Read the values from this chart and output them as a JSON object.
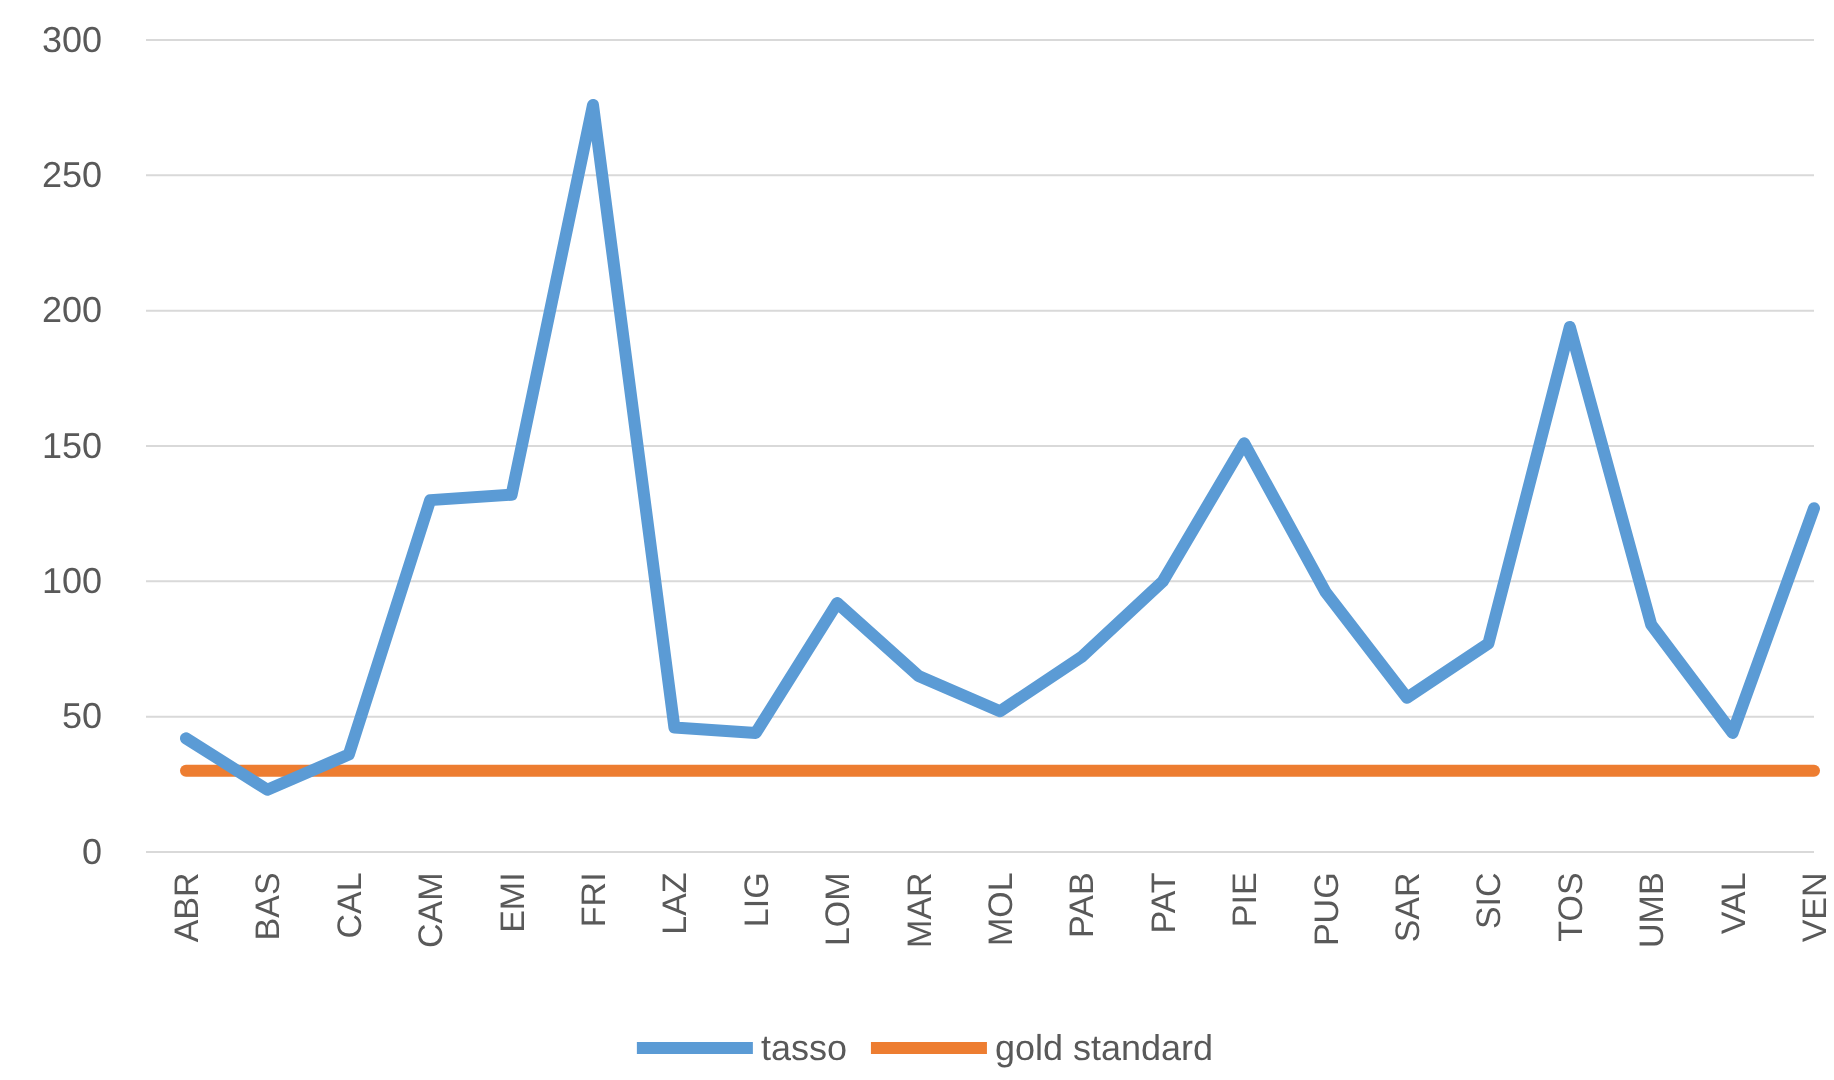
{
  "chart_data": {
    "type": "line",
    "categories": [
      "ABR",
      "BAS",
      "CAL",
      "CAM",
      "EMI",
      "FRI",
      "LAZ",
      "LIG",
      "LOM",
      "MAR",
      "MOL",
      "PAB",
      "PAT",
      "PIE",
      "PUG",
      "SAR",
      "SIC",
      "TOS",
      "UMB",
      "VAL",
      "VEN"
    ],
    "series": [
      {
        "name": "tasso",
        "color": "#5b9bd5",
        "values": [
          42,
          23,
          36,
          130,
          132,
          276,
          46,
          44,
          92,
          65,
          52,
          72,
          100,
          151,
          96,
          57,
          77,
          194,
          84,
          44,
          127
        ]
      },
      {
        "name": "gold standard",
        "color": "#ed7d31",
        "values": [
          30,
          30,
          30,
          30,
          30,
          30,
          30,
          30,
          30,
          30,
          30,
          30,
          30,
          30,
          30,
          30,
          30,
          30,
          30,
          30,
          30
        ]
      }
    ],
    "ylim": [
      0,
      300
    ],
    "yticks": [
      0,
      50,
      100,
      150,
      200,
      250,
      300
    ],
    "grid": "y",
    "legend": "bottom",
    "marker": "none",
    "line_style": "solid"
  }
}
